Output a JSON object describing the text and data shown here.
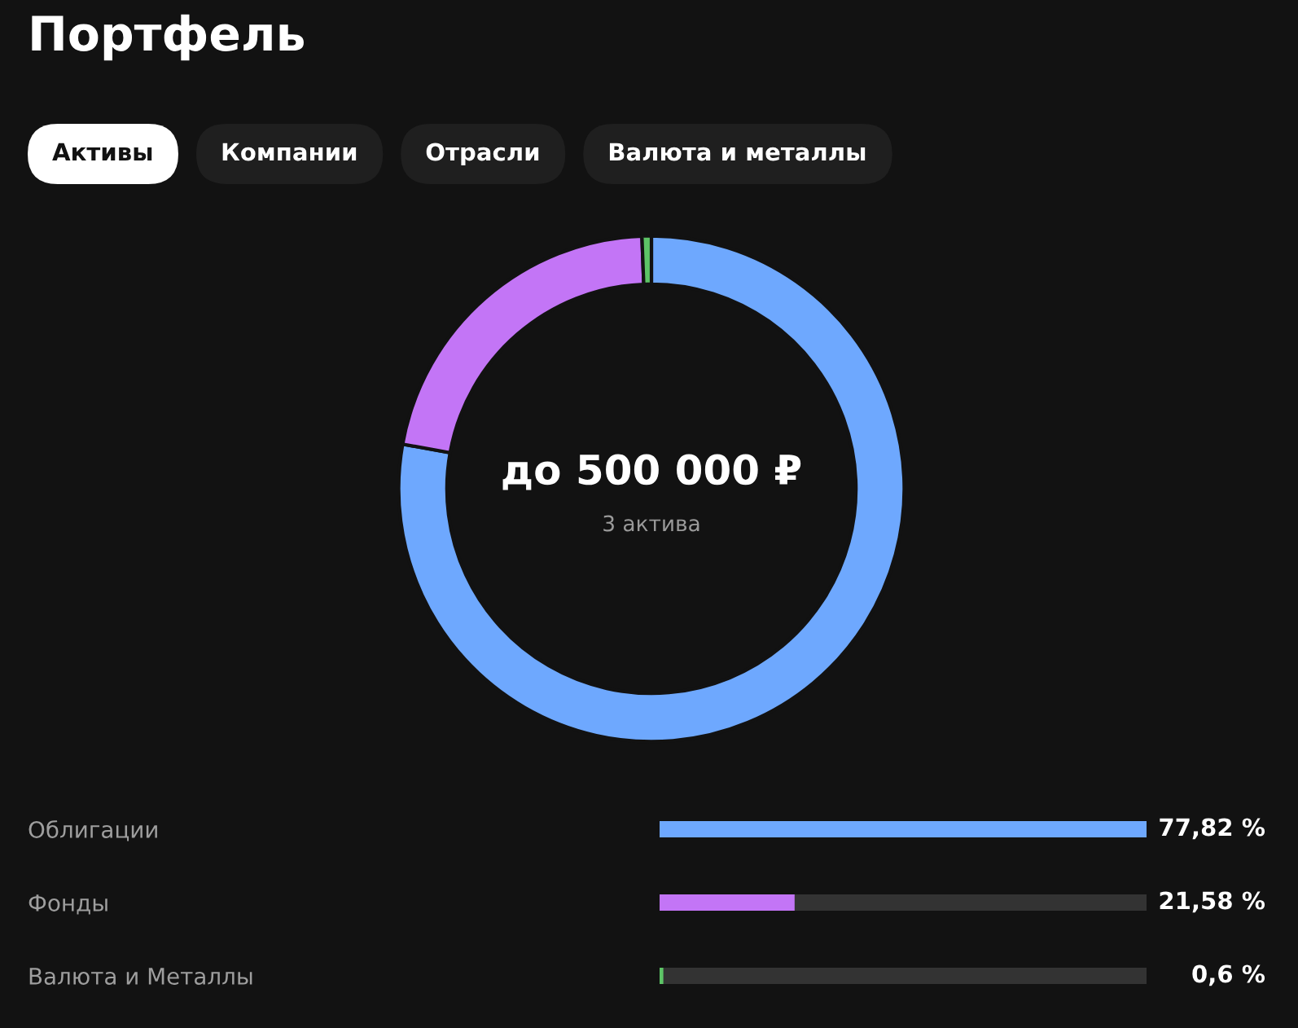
{
  "chart_data": [
    {
      "type": "donut",
      "title": "Портфель",
      "categories": [
        null,
        null,
        null
      ],
      "values": [
        77.82,
        21.58,
        0.6
      ],
      "colors": [
        "#6ea8fe",
        "#c375f6",
        "#5dc466"
      ],
      "annotations": [
        "Активы",
        "Компании",
        "Отрасли",
        "Валюта и металлы",
        "до 500 000 ₽",
        "3 актива"
      ]
    },
    {
      "type": "bar",
      "orientation": "horizontal",
      "categories": [
        "Облигации",
        "Фонды",
        "Валюта и Металлы"
      ],
      "values": [
        77.82,
        21.58,
        0.6
      ],
      "colors": [
        "#6ea8fe",
        "#c375f6",
        "#5dc466"
      ],
      "value_labels": [
        "77,82 %",
        "21,58 %",
        "0,6 %"
      ],
      "xlim": [
        0,
        77.82
      ],
      "tick_labels": "y"
    }
  ]
}
